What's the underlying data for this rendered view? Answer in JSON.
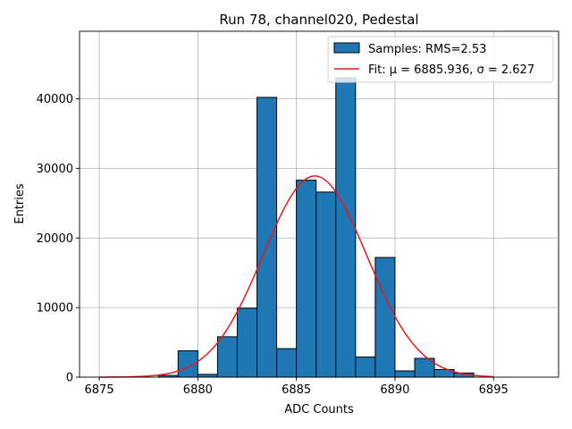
{
  "chart_data": {
    "type": "bar",
    "title": "Run 78, channel020, Pedestal",
    "xlabel": "ADC Counts",
    "ylabel": "Entries",
    "xlim": [
      6874.0,
      6898.3
    ],
    "ylim": [
      0,
      49700
    ],
    "xticks": [
      6875,
      6880,
      6885,
      6890,
      6895
    ],
    "yticks": [
      0,
      10000,
      20000,
      30000,
      40000
    ],
    "grid": true,
    "legend_position": "top-right",
    "bar_color": "#1f77b4",
    "fit_color": "#e41a1c",
    "histogram": {
      "name": "Samples: RMS=2.53",
      "bin_width": 1,
      "bin_starts": [
        6878,
        6879,
        6880,
        6881,
        6882,
        6883,
        6884,
        6885,
        6886,
        6887,
        6888,
        6889,
        6890,
        6891,
        6892,
        6893
      ],
      "values": [
        250,
        3800,
        400,
        5800,
        9900,
        40200,
        4100,
        28300,
        26600,
        43000,
        2900,
        17200,
        900,
        2700,
        1100,
        600
      ]
    },
    "fit": {
      "name": "Fit: μ = 6885.936, σ = 2.627",
      "mu": 6885.936,
      "sigma": 2.627,
      "amplitude": 28900,
      "x_range": [
        6875,
        6895
      ]
    }
  }
}
